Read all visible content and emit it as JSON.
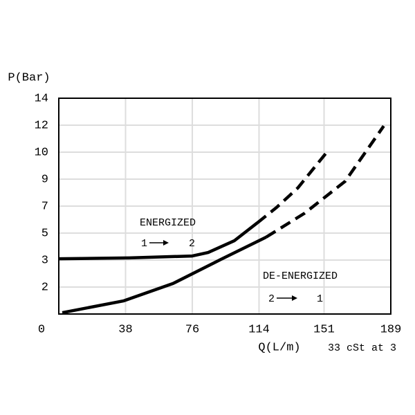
{
  "chart_data": {
    "type": "line",
    "ylabel": "P(Bar)",
    "xlabel": "Q(L/m)",
    "note": "33 cSt at 3",
    "xlim": [
      0,
      189
    ],
    "xticks": [
      0,
      38,
      76,
      114,
      151,
      189
    ],
    "ylim": [
      0,
      8
    ],
    "yticks": [
      {
        "value": 1,
        "label": "2"
      },
      {
        "value": 2,
        "label": "3"
      },
      {
        "value": 3,
        "label": "5"
      },
      {
        "value": 4,
        "label": "7"
      },
      {
        "value": 5,
        "label": "9"
      },
      {
        "value": 6,
        "label": "10"
      },
      {
        "value": 7,
        "label": "12"
      },
      {
        "value": 8,
        "label": "14"
      }
    ],
    "grid": true,
    "series": [
      {
        "name": "ENERGIZED",
        "color": "#000000",
        "dashed": false,
        "x": [
          0,
          40,
          76,
          85,
          100,
          113
        ],
        "values": [
          2.05,
          2.08,
          2.15,
          2.28,
          2.72,
          3.38
        ]
      },
      {
        "color": "#000000",
        "dashed": true,
        "x": [
          113,
          124,
          136,
          152
        ],
        "values": [
          3.38,
          3.95,
          4.67,
          5.95
        ]
      },
      {
        "name": "DE-ENERGIZED",
        "color": "#000000",
        "dashed": false,
        "x": [
          2,
          37,
          65,
          92.5,
          118
        ],
        "values": [
          0.05,
          0.49,
          1.13,
          2.03,
          2.85
        ]
      },
      {
        "color": "#000000",
        "dashed": true,
        "x": [
          118,
          140,
          163,
          185
        ],
        "values": [
          2.85,
          3.74,
          4.92,
          6.97
        ]
      }
    ],
    "annotations": [
      {
        "from": "1",
        "to": "2"
      },
      {
        "from": "2",
        "to": "1"
      }
    ]
  }
}
